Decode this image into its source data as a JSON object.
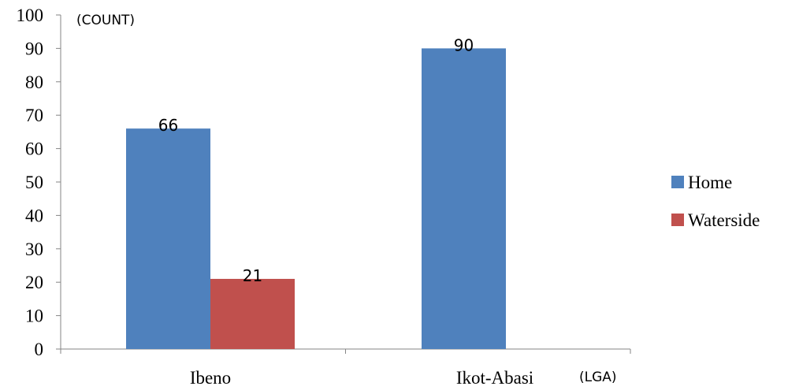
{
  "chart_data": {
    "type": "bar",
    "categories": [
      "Ibeno",
      "Ikot-Abasi"
    ],
    "series": [
      {
        "name": "Home",
        "values": [
          66,
          90
        ],
        "color": "#4f81bd"
      },
      {
        "name": "Waterside",
        "values": [
          21,
          null
        ],
        "color": "#c0504d"
      }
    ],
    "data_labels": [
      [
        "66",
        "90"
      ],
      [
        "21",
        ""
      ]
    ],
    "ylabel": "(COUNT)",
    "xlabel": "(LGA)",
    "ylim": [
      0,
      100
    ],
    "yticks": [
      0,
      10,
      20,
      30,
      40,
      50,
      60,
      70,
      80,
      90,
      100
    ],
    "grid": false,
    "legend_position": "right"
  }
}
